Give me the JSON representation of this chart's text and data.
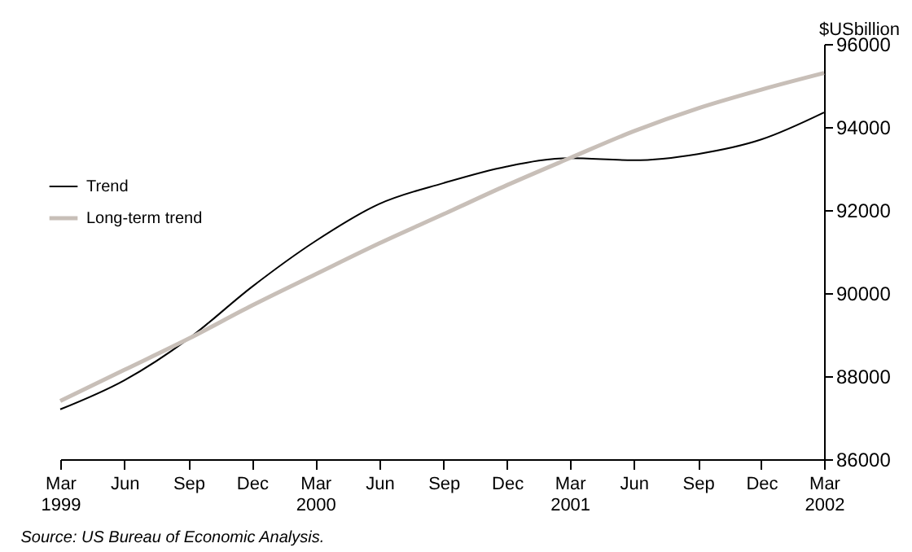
{
  "chart_data": {
    "type": "line",
    "ylabel": "$USbillion",
    "x": [
      "1999-03",
      "1999-06",
      "1999-09",
      "1999-12",
      "2000-03",
      "2000-06",
      "2000-09",
      "2000-12",
      "2001-03",
      "2001-06",
      "2001-09",
      "2001-12",
      "2002-03"
    ],
    "series": [
      {
        "name": "Trend",
        "color": "#000000",
        "values": [
          87200,
          87900,
          88900,
          90150,
          91250,
          92150,
          92650,
          93050,
          93250,
          93200,
          93350,
          93700,
          94350
        ]
      },
      {
        "name": "Long-term trend",
        "color": "#c8bfb8",
        "values": [
          87400,
          88150,
          88900,
          89700,
          90450,
          91200,
          91900,
          92600,
          93250,
          93900,
          94450,
          94900,
          95300
        ]
      }
    ],
    "xlim": [
      "1999-03",
      "2002-03"
    ],
    "xticks": [
      {
        "value": "1999-03",
        "label": "Mar\n1999"
      },
      {
        "value": "1999-06",
        "label": "Jun"
      },
      {
        "value": "1999-09",
        "label": "Sep"
      },
      {
        "value": "1999-12",
        "label": "Dec"
      },
      {
        "value": "2000-03",
        "label": "Mar\n2000"
      },
      {
        "value": "2000-06",
        "label": "Jun"
      },
      {
        "value": "2000-09",
        "label": "Sep"
      },
      {
        "value": "2000-12",
        "label": "Dec"
      },
      {
        "value": "2001-03",
        "label": "Mar\n2001"
      },
      {
        "value": "2001-06",
        "label": "Jun"
      },
      {
        "value": "2001-09",
        "label": "Sep"
      },
      {
        "value": "2001-12",
        "label": "Dec"
      },
      {
        "value": "2002-03",
        "label": "Mar\n2002"
      }
    ],
    "ylim": [
      86000,
      96000
    ],
    "yticks": [
      86000,
      88000,
      90000,
      92000,
      94000,
      96000
    ],
    "grid": false,
    "legend": "left",
    "marker": "none",
    "line_style": "solid",
    "annotations": [
      "Source: US Bureau of Economic Analysis."
    ]
  }
}
